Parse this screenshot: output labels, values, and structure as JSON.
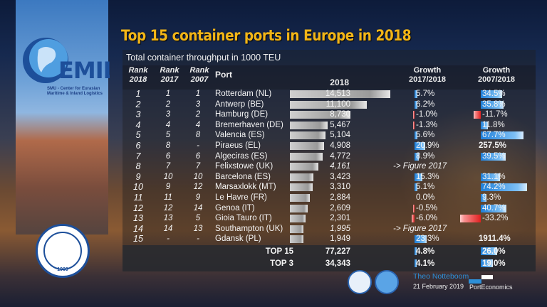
{
  "title": "Top 15 container ports in Europe in 2018",
  "subtitle": "Total container throughput in 1000 TEU",
  "logos": {
    "cemil": "CEMIL",
    "cemil_tagline_1": "SMU - Center for Eurasian",
    "cemil_tagline_2": "Maritime & Inland Logistics",
    "smu": "SHANGHAI MARITIME UNIVERSITY 上海海事大学 1909",
    "smu_year": "1909",
    "porteconomics": "PortEconomics"
  },
  "footer": {
    "author": "Theo Notteboom",
    "date": "21 February 2019"
  },
  "colors": {
    "title": "#f2b517",
    "positive": "#1f7fd8",
    "negative": "#e02020",
    "throughput_bar": "#b0b0b0",
    "author": "#2d8fd8"
  },
  "chart_data": {
    "type": "table",
    "title": "Top 15 container ports in Europe in 2018",
    "subtitle": "Total container throughput in 1000 TEU",
    "headers": {
      "rank2018": [
        "Rank",
        "2018"
      ],
      "rank2017": [
        "Rank",
        "2017"
      ],
      "rank2007": [
        "Rank",
        "2007"
      ],
      "port": "Port",
      "value": "2018",
      "growth1": [
        "Growth",
        "2017/2018"
      ],
      "growth2": [
        "Growth",
        "2007/2018"
      ]
    },
    "rows": [
      {
        "rank2018": "1",
        "rank2017": "1",
        "rank2007": "1",
        "port": "Rotterdam (NL)",
        "teu": 14513,
        "value": "14,513",
        "growth1": "5.7%",
        "g1": 5.7,
        "growth2": "34.5%",
        "g2": 34.5
      },
      {
        "rank2018": "2",
        "rank2017": "2",
        "rank2007": "3",
        "port": "Antwerp (BE)",
        "teu": 11100,
        "value": "11,100",
        "growth1": "6.2%",
        "g1": 6.2,
        "growth2": "35.8%",
        "g2": 35.8
      },
      {
        "rank2018": "3",
        "rank2017": "3",
        "rank2007": "2",
        "port": "Hamburg (DE)",
        "teu": 8730,
        "value": "8,730",
        "growth1": "-1.0%",
        "g1": -1.0,
        "growth2": "-11.7%",
        "g2": -11.7
      },
      {
        "rank2018": "4",
        "rank2017": "4",
        "rank2007": "4",
        "port": "Bremerhaven (DE)",
        "teu": 5467,
        "value": "5,467",
        "growth1": "-1.3%",
        "g1": -1.3,
        "growth2": "11.8%",
        "g2": 11.8
      },
      {
        "rank2018": "5",
        "rank2017": "5",
        "rank2007": "8",
        "port": "Valencia (ES)",
        "teu": 5104,
        "value": "5,104",
        "growth1": "5.6%",
        "g1": 5.6,
        "growth2": "67.7%",
        "g2": 67.7
      },
      {
        "rank2018": "6",
        "rank2017": "8",
        "rank2007": "-",
        "port": "Piraeus (EL)",
        "teu": 4908,
        "value": "4,908",
        "growth1": "20.9%",
        "g1": 20.9,
        "growth2": "257.5%",
        "g2": 257.5
      },
      {
        "rank2018": "7",
        "rank2017": "6",
        "rank2007": "6",
        "port": "Algeciras (ES)",
        "teu": 4772,
        "value": "4,772",
        "growth1": "8.9%",
        "g1": 8.9,
        "growth2": "39.5%",
        "g2": 39.5
      },
      {
        "rank2018": "8",
        "rank2017": "7",
        "rank2007": "7",
        "port": "Felixstowe (UK)",
        "teu": 4161,
        "value": "4,161",
        "estimate": true,
        "note": "-> Figure 2017"
      },
      {
        "rank2018": "9",
        "rank2017": "10",
        "rank2007": "10",
        "port": "Barcelona (ES)",
        "teu": 3423,
        "value": "3,423",
        "growth1": "15.3%",
        "g1": 15.3,
        "growth2": "31.1%",
        "g2": 31.1
      },
      {
        "rank2018": "10",
        "rank2017": "9",
        "rank2007": "12",
        "port": "Marsaxlokk (MT)",
        "teu": 3310,
        "value": "3,310",
        "growth1": "5.1%",
        "g1": 5.1,
        "growth2": "74.2%",
        "g2": 74.2
      },
      {
        "rank2018": "11",
        "rank2017": "11",
        "rank2007": "9",
        "port": "Le Havre (FR)",
        "teu": 2884,
        "value": "2,884",
        "growth1": "0.0%",
        "g1": 0.0,
        "growth2": "9.3%",
        "g2": 9.3
      },
      {
        "rank2018": "12",
        "rank2017": "12",
        "rank2007": "14",
        "port": "Genoa (IT)",
        "teu": 2609,
        "value": "2,609",
        "growth1": "-0.5%",
        "g1": -0.5,
        "growth2": "40.7%",
        "g2": 40.7
      },
      {
        "rank2018": "13",
        "rank2017": "13",
        "rank2007": "5",
        "port": "Gioia Tauro (IT)",
        "teu": 2301,
        "value": "2,301",
        "growth1": "-6.0%",
        "g1": -6.0,
        "growth2": "-33.2%",
        "g2": -33.2
      },
      {
        "rank2018": "14",
        "rank2017": "14",
        "rank2007": "13",
        "port": "Southampton (UK)",
        "teu": 1995,
        "value": "1,995",
        "estimate": true,
        "note": "-> Figure 2017"
      },
      {
        "rank2018": "15",
        "rank2017": "-",
        "rank2007": "-",
        "port": "Gdansk (PL)",
        "teu": 1949,
        "value": "1,949",
        "growth1": "23.3%",
        "g1": 23.3,
        "growth2": "1911.4%",
        "g2": 1911.4
      }
    ],
    "totals": [
      {
        "label": "TOP 15",
        "value": "77,227",
        "growth1": "4.8%",
        "g1": 4.8,
        "growth2": "26.0%",
        "g2": 26.0
      },
      {
        "label": "TOP 3",
        "value": "34,343",
        "growth1": "4.1%",
        "g1": 4.1,
        "growth2": "19.0%",
        "g2": 19.0
      }
    ]
  }
}
